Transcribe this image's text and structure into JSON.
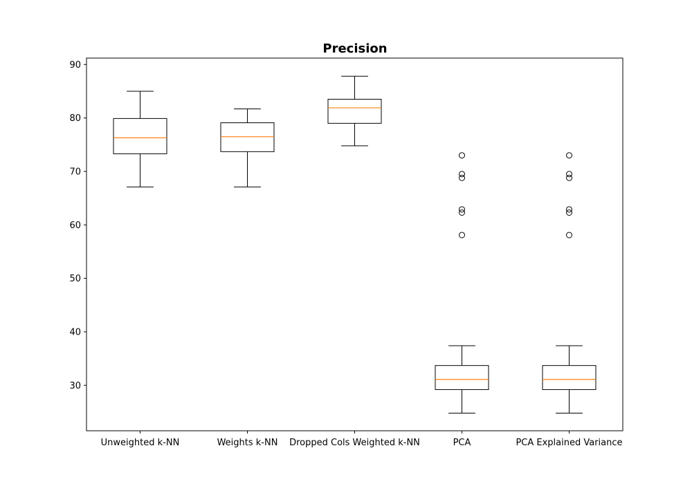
{
  "chart_data": {
    "type": "box",
    "title": "Precision",
    "xlabel": "",
    "ylabel": "",
    "ylim": [
      21.5,
      91.2
    ],
    "yticks": [
      30,
      40,
      50,
      60,
      70,
      80,
      90
    ],
    "grid": false,
    "categories": [
      "Unweighted k-NN",
      "Weights k-NN",
      "Dropped Cols Weighted k-NN",
      "PCA",
      "PCA Explained Variance"
    ],
    "boxes": [
      {
        "whisker_low": 67.1,
        "q1": 73.3,
        "median": 76.3,
        "q3": 79.9,
        "whisker_high": 85.0,
        "outliers": []
      },
      {
        "whisker_low": 67.1,
        "q1": 73.7,
        "median": 76.5,
        "q3": 79.1,
        "whisker_high": 81.7,
        "outliers": []
      },
      {
        "whisker_low": 74.8,
        "q1": 79.0,
        "median": 81.9,
        "q3": 83.5,
        "whisker_high": 87.8,
        "outliers": []
      },
      {
        "whisker_low": 24.8,
        "q1": 29.2,
        "median": 31.1,
        "q3": 33.7,
        "whisker_high": 37.4,
        "outliers": [
          58.1,
          62.3,
          62.9,
          68.8,
          69.5,
          73.0
        ]
      },
      {
        "whisker_low": 24.8,
        "q1": 29.2,
        "median": 31.1,
        "q3": 33.7,
        "whisker_high": 37.4,
        "outliers": [
          58.1,
          62.3,
          62.9,
          68.8,
          69.5,
          73.0
        ]
      }
    ],
    "colors": {
      "box": "#000000",
      "median": "#ff7f0e",
      "outlier": "#000000"
    }
  }
}
